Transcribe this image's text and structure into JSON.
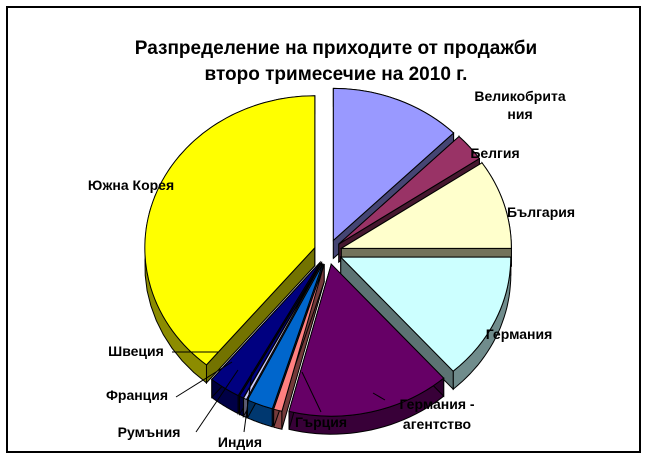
{
  "chart_data": {
    "type": "pie",
    "style": "3d-exploded",
    "title": "Разпределение на приходите от продажби",
    "subtitle": "второ тримесечие на 2010 г.",
    "slices": [
      {
        "label": "Великобритания",
        "label_lines": [
          "Великобрита",
          "ния"
        ],
        "value": 12.5,
        "color": "#9999ff"
      },
      {
        "label": "Белгия",
        "label_lines": [
          "Белгия"
        ],
        "value": 3.0,
        "color": "#993366"
      },
      {
        "label": "България",
        "label_lines": [
          "България"
        ],
        "value": 9.5,
        "color": "#ffffcc"
      },
      {
        "label": "Германия",
        "label_lines": [
          "Германия"
        ],
        "value": 13.5,
        "color": "#ccffff"
      },
      {
        "label": "Германия - агентство",
        "label_lines": [
          "Германия -",
          "агентство"
        ],
        "value": 15.5,
        "color": "#660066"
      },
      {
        "label": "Гърция",
        "label_lines": [
          "Гърция"
        ],
        "value": 0.8,
        "color": "#ff8080"
      },
      {
        "label": "Индия",
        "label_lines": [
          "Индия"
        ],
        "value": 2.5,
        "color": "#0066cc"
      },
      {
        "label": "Румъния",
        "label_lines": [
          "Румъния"
        ],
        "value": 0.3,
        "color": "#ccccff"
      },
      {
        "label": "Франция",
        "label_lines": [
          "Франция"
        ],
        "value": 0.4,
        "color": "#000080"
      },
      {
        "label": "Швеция",
        "label_lines": [
          "Швеция"
        ],
        "value": 3.0,
        "color": "#000080"
      },
      {
        "label": "Южна Корея",
        "label_lines": [
          "Южна Корея"
        ],
        "value": 39.0,
        "color": "#ffff00"
      }
    ],
    "legend": "none",
    "data_labels": "category-name"
  }
}
